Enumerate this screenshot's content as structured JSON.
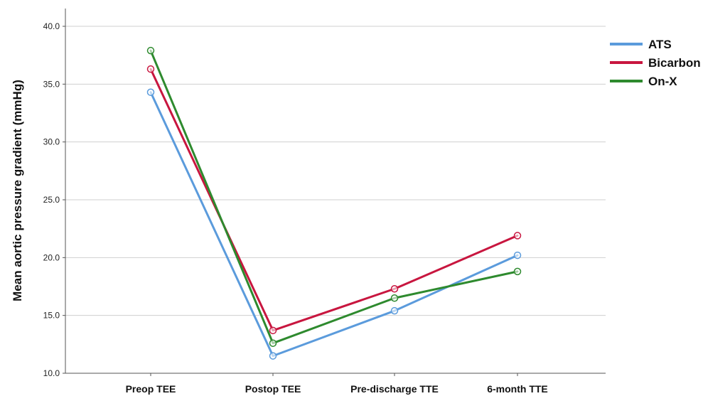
{
  "chart_data": {
    "type": "line",
    "categories": [
      "Preop TEE",
      "Postop TEE",
      "Pre-discharge TTE",
      "6-month TTE"
    ],
    "series": [
      {
        "name": "ATS",
        "color": "#5b9bdc",
        "values": [
          34.3,
          11.5,
          15.4,
          20.2
        ]
      },
      {
        "name": "Bicarbon",
        "color": "#c8163f",
        "values": [
          36.3,
          13.7,
          17.3,
          21.9
        ]
      },
      {
        "name": "On-X",
        "color": "#2e8a2e",
        "values": [
          37.9,
          12.6,
          16.5,
          18.8
        ]
      }
    ],
    "ylabel": "Mean aortic pressure gradient (mmHg)",
    "ylim": [
      10,
      40
    ],
    "yticks": [
      "10.0",
      "15.0",
      "20.0",
      "25.0",
      "30.0",
      "35.0",
      "40.0"
    ],
    "grid": true,
    "legend": "top-right",
    "marker": "open-circle"
  }
}
